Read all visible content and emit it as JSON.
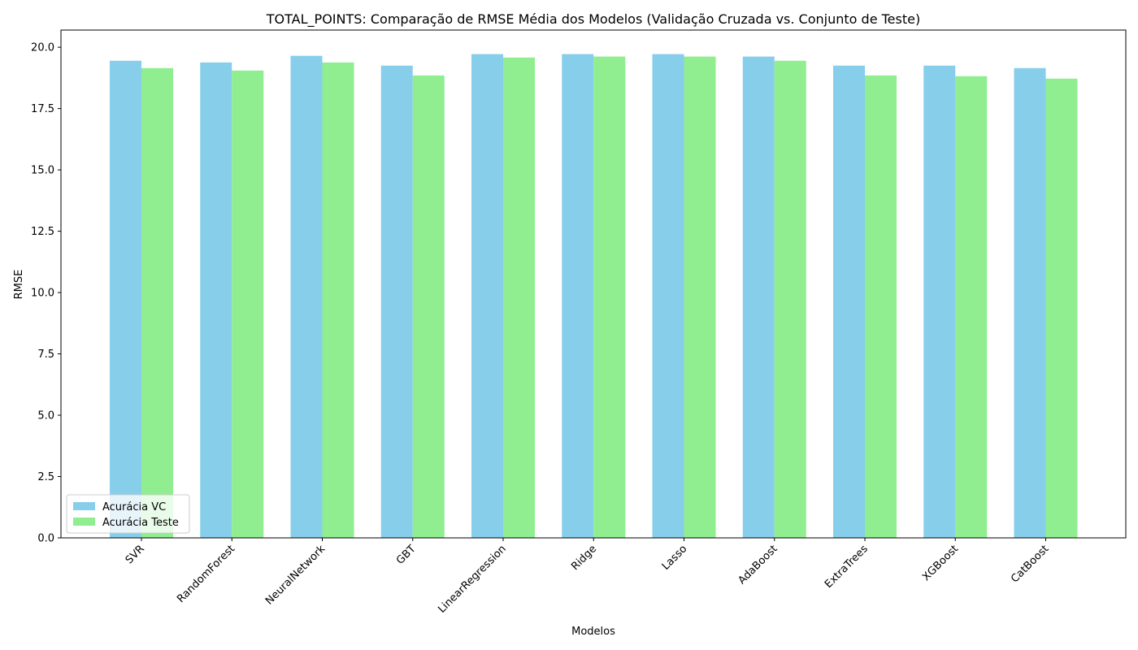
{
  "chart_data": {
    "type": "bar",
    "title": "TOTAL_POINTS: Comparação de RMSE Média dos Modelos (Validação Cruzada vs. Conjunto de Teste)",
    "xlabel": "Modelos",
    "ylabel": "RMSE",
    "ylim": [
      0,
      20.7
    ],
    "yticks": [
      "0.0",
      "2.5",
      "5.0",
      "7.5",
      "10.0",
      "12.5",
      "15.0",
      "17.5",
      "20.0"
    ],
    "grid": false,
    "legend_position": "bottom-left",
    "categories": [
      "SVR",
      "RandomForest",
      "NeuralNetwork",
      "GBT",
      "LinearRegression",
      "Ridge",
      "Lasso",
      "AdaBoost",
      "ExtraTrees",
      "XGBoost",
      "CatBoost"
    ],
    "series": [
      {
        "name": "Acurácia VC",
        "color": "#87ceeb",
        "values": [
          19.45,
          19.38,
          19.65,
          19.25,
          19.72,
          19.72,
          19.72,
          19.62,
          19.25,
          19.25,
          19.15
        ]
      },
      {
        "name": "Acurácia Teste",
        "color": "#90ee90",
        "values": [
          19.15,
          19.05,
          19.38,
          18.85,
          19.58,
          19.62,
          19.62,
          19.45,
          18.85,
          18.82,
          18.72
        ]
      }
    ]
  }
}
